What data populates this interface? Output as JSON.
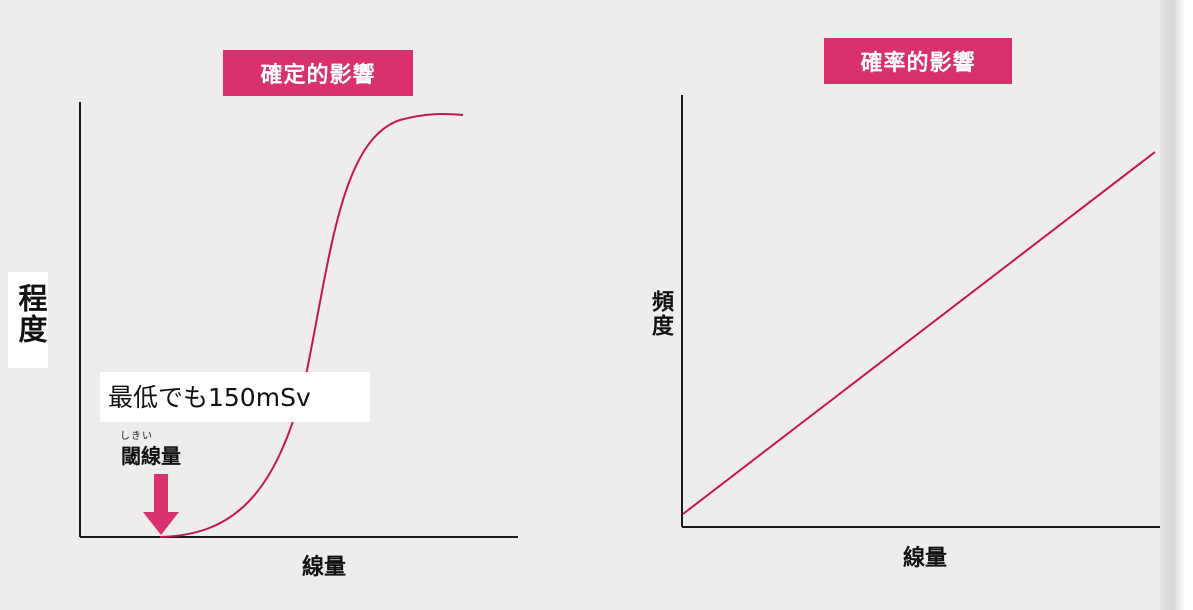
{
  "panels": {
    "left": {
      "title": "確定的影響",
      "ylabel": "程度",
      "xlabel": "線量",
      "annotation": "最低でも150mSv",
      "threshold_reading": "しきい",
      "threshold_label": "閾線量"
    },
    "right": {
      "title": "確率的影響",
      "ylabel": "頻度",
      "xlabel": "線量"
    }
  },
  "colors": {
    "accent": "#d9316f",
    "curve": "#c4174f",
    "axis": "#1a1a1a"
  },
  "icons": {
    "threshold_marker": "down-arrow-icon"
  }
}
